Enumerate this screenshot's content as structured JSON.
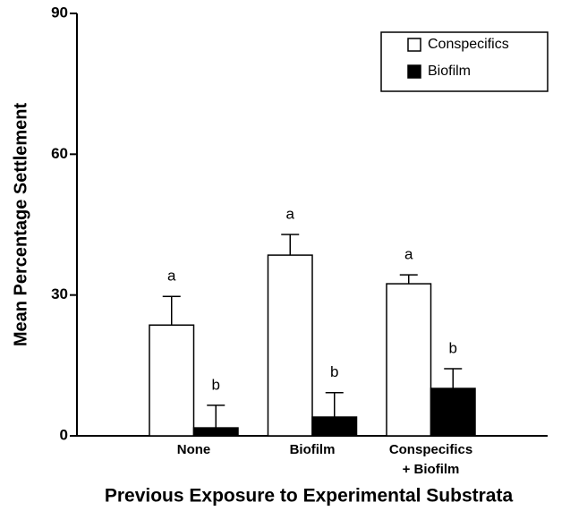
{
  "chart_data": {
    "type": "bar",
    "x_label": "Previous Exposure to Experimental Substrata",
    "y_label": "Mean Percentage Settlement",
    "categories": [
      "None",
      "Biofilm",
      "Conspecifics\n+ Biofilm"
    ],
    "series": [
      {
        "name": "Conspecifics",
        "color": "#ffffff",
        "values": [
          23.6,
          38.5,
          32.4
        ],
        "errors": [
          6.1,
          4.4,
          1.9
        ],
        "letters": [
          "a",
          "a",
          "a"
        ]
      },
      {
        "name": "Biofilm",
        "color": "#000000",
        "values": [
          1.7,
          4.0,
          10.1
        ],
        "errors": [
          4.8,
          5.2,
          4.2
        ],
        "letters": [
          "b",
          "b",
          "b"
        ]
      }
    ],
    "ylim": [
      0,
      90
    ],
    "yticks": [
      0,
      30,
      60,
      90
    ],
    "grid": false,
    "legend": "upper right"
  }
}
